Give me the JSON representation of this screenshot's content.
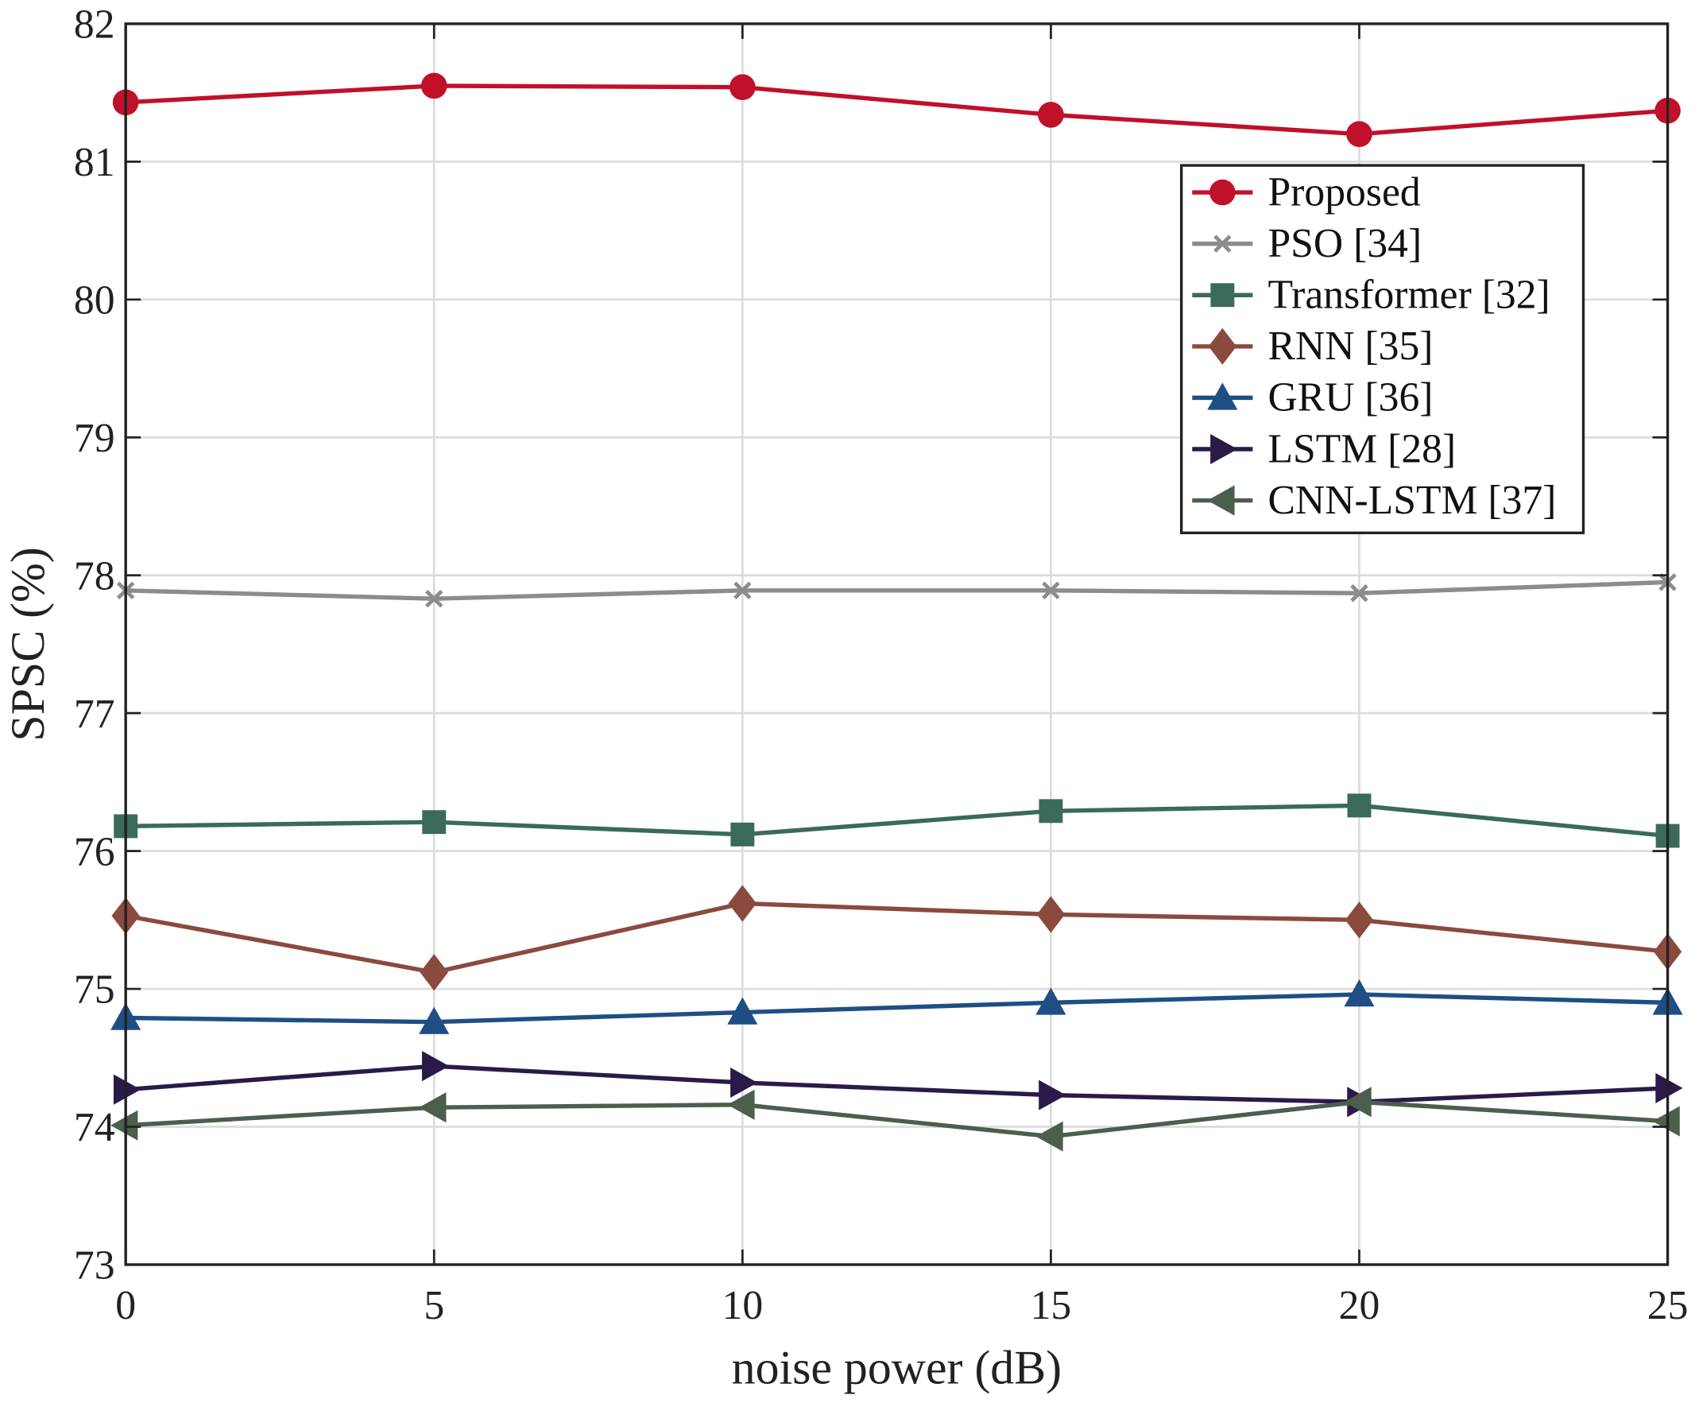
{
  "chart_data": {
    "type": "line",
    "title": "",
    "xlabel": "noise power (dB)",
    "ylabel": "SPSC (%)",
    "xlim": [
      0,
      25
    ],
    "ylim": [
      73,
      82
    ],
    "xticks": [
      0,
      5,
      10,
      15,
      20,
      25
    ],
    "yticks": [
      73,
      74,
      75,
      76,
      77,
      78,
      79,
      80,
      81,
      82
    ],
    "grid": true,
    "legend_position": "top-right",
    "x": [
      0,
      5,
      10,
      15,
      20,
      25
    ],
    "series": [
      {
        "name": "Proposed",
        "color": "#c0102a",
        "marker": "circle",
        "values": [
          81.43,
          81.55,
          81.54,
          81.34,
          81.2,
          81.37
        ]
      },
      {
        "name": "PSO [34]",
        "color": "#8c8c8c",
        "marker": "x",
        "values": [
          77.89,
          77.83,
          77.89,
          77.89,
          77.87,
          77.95
        ]
      },
      {
        "name": "Transformer [32]",
        "color": "#3a6b58",
        "marker": "square",
        "values": [
          76.18,
          76.21,
          76.12,
          76.29,
          76.33,
          76.11
        ]
      },
      {
        "name": "RNN [35]",
        "color": "#8b4a3e",
        "marker": "diamond",
        "values": [
          75.53,
          75.12,
          75.62,
          75.54,
          75.5,
          75.27
        ]
      },
      {
        "name": "GRU [36]",
        "color": "#1f4e85",
        "marker": "triangle-up",
        "values": [
          74.79,
          74.76,
          74.83,
          74.9,
          74.96,
          74.9
        ]
      },
      {
        "name": "LSTM [28]",
        "color": "#2a1a4a",
        "marker": "triangle-right",
        "values": [
          74.27,
          74.44,
          74.32,
          74.23,
          74.18,
          74.28
        ]
      },
      {
        "name": "CNN-LSTM [37]",
        "color": "#4c5e4c",
        "marker": "triangle-left",
        "values": [
          74.01,
          74.14,
          74.16,
          73.93,
          74.18,
          74.04
        ]
      }
    ]
  }
}
